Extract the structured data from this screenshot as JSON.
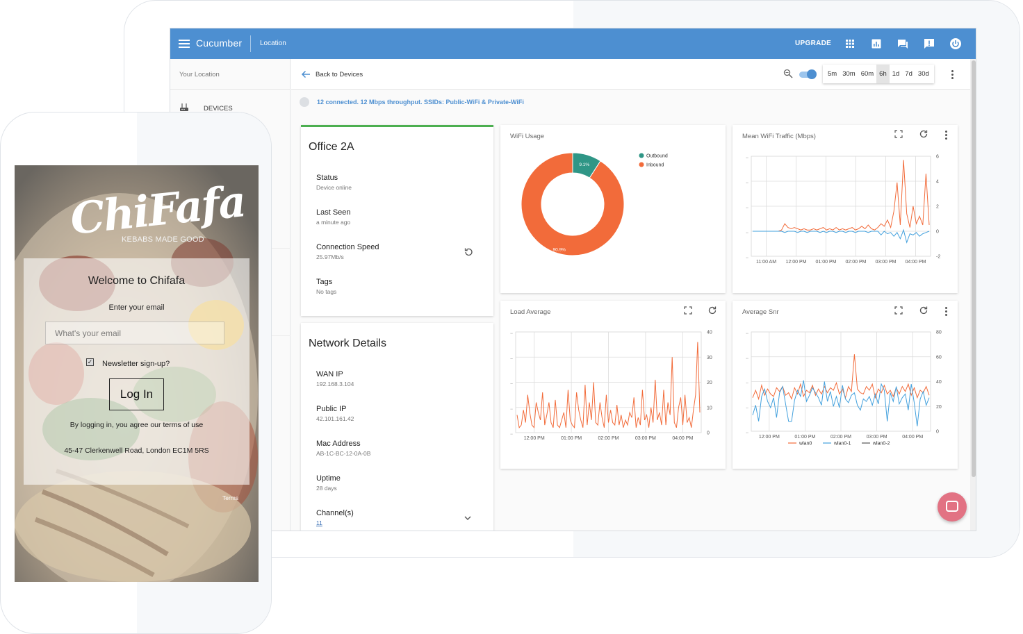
{
  "dashboard": {
    "app_title": "Cucumber",
    "location_label": "Location",
    "upgrade_label": "UPGRADE",
    "topbar_icons": [
      "apps-grid-icon",
      "report-chart-icon",
      "chat-icon",
      "feedback-icon",
      "power-icon"
    ],
    "brand_color": "#4d8fd1",
    "sidebar": {
      "your_location": "Your Location",
      "items": [
        {
          "label": "DEVICES",
          "icon": "router-icon"
        }
      ]
    },
    "subheader": {
      "back_label": "Back to Devices",
      "time_ranges": [
        "5m",
        "30m",
        "60m",
        "6h",
        "1d",
        "7d",
        "30d"
      ],
      "active_range": "6h"
    },
    "status_text": "12 connected. 12 Mbps throughput. SSIDs: Public-WiFi & Private-WiFi",
    "device_card": {
      "title": "Office 2A",
      "accent_color": "#4caf50",
      "fields": [
        {
          "label": "Status",
          "value": "Device online"
        },
        {
          "label": "Last Seen",
          "value": "a minute ago"
        },
        {
          "label": "Connection Speed",
          "value": "25.97Mb/s"
        },
        {
          "label": "Tags",
          "value": "No tags"
        }
      ]
    },
    "network_card": {
      "title": "Network Details",
      "fields": [
        {
          "label": "WAN IP",
          "value": "192.168.3.104"
        },
        {
          "label": "Public IP",
          "value": "42.101.161.42"
        },
        {
          "label": "Mac Address",
          "value": "AB-1C-BC-12-0A-0B"
        },
        {
          "label": "Uptime",
          "value": "28 days"
        },
        {
          "label": "Channel(s)",
          "value": "11"
        }
      ]
    }
  },
  "chart_data": [
    {
      "type": "pie",
      "title": "WiFi Usage",
      "slices": [
        {
          "name": "Outbound",
          "value": 9.1,
          "label": "9.1%",
          "color": "#2f9686"
        },
        {
          "name": "Inbound",
          "value": 90.9,
          "label": "90.9%",
          "color": "#f26b3a"
        }
      ],
      "legend": "top-right"
    },
    {
      "type": "line",
      "title": "Mean WiFi Traffic (Mbps)",
      "x_ticks": [
        "11:00 AM",
        "12:00 PM",
        "01:00 PM",
        "02:00 PM",
        "03:00 PM",
        "04:00 PM"
      ],
      "y_ticks": [
        "6",
        "4",
        "2",
        "0",
        "-2"
      ],
      "ylim": [
        -2,
        6
      ],
      "series": [
        {
          "color": "#f26b3a",
          "values": [
            0,
            0,
            0,
            0,
            0,
            0,
            0,
            0,
            0,
            0.1,
            0.6,
            0.3,
            0.2,
            0.3,
            0.2,
            0.1,
            0.2,
            0.1,
            0.1,
            0.2,
            0.1,
            0.2,
            0.3,
            0.1,
            0.2,
            0.1,
            0.3,
            0.1,
            0.2,
            0.1,
            0.2,
            0.3,
            0.1,
            0.2,
            0.4,
            0.2,
            0.5,
            0.2,
            0.1,
            0.3,
            0.6,
            0.4,
            0.9,
            0.3,
            1.6,
            3.9,
            0.5,
            5.7,
            1.4,
            0.3,
            2.0,
            0.6,
            1.2,
            0.5,
            4.6,
            0.5
          ]
        },
        {
          "color": "#42a0dd",
          "values": [
            0,
            0,
            0,
            0,
            0,
            0,
            0,
            0,
            0,
            0,
            -0.1,
            0,
            0,
            0,
            -0.1,
            0,
            0,
            -0.1,
            0,
            0,
            0,
            -0.1,
            0,
            -0.1,
            0,
            0,
            -0.1,
            0,
            0,
            -0.1,
            0,
            0,
            -0.1,
            0,
            0,
            0,
            -0.1,
            0,
            0,
            0,
            -0.3,
            0,
            -0.2,
            -0.1,
            -0.4,
            -0.1,
            -0.6,
            0.1,
            -0.9,
            -0.2,
            -0.3,
            -0.1,
            -0.4,
            -0.2,
            -0.1,
            0
          ]
        }
      ]
    },
    {
      "type": "line",
      "title": "Load Average",
      "x_ticks": [
        "12:00 PM",
        "01:00 PM",
        "02:00 PM",
        "03:00 PM",
        "04:00 PM"
      ],
      "y_ticks": [
        "40",
        "30",
        "20",
        "10",
        "0"
      ],
      "ylim": [
        0,
        40
      ],
      "series": [
        {
          "color": "#f26b3a",
          "values": [
            7,
            2,
            3,
            9,
            4,
            15,
            8,
            3,
            2,
            12,
            8,
            5,
            16,
            3,
            7,
            12,
            4,
            2,
            13,
            3,
            2,
            5,
            8,
            2,
            17,
            5,
            3,
            2,
            16,
            9,
            5,
            2,
            19,
            3,
            12,
            5,
            20,
            4,
            3,
            12,
            6,
            2,
            15,
            4,
            9,
            4,
            3,
            11,
            3,
            7,
            2,
            5,
            3,
            8,
            6,
            14,
            2,
            6,
            3,
            17,
            5,
            7,
            2,
            10,
            4,
            21,
            5,
            8,
            3,
            17,
            3,
            12,
            7,
            30,
            4,
            2,
            10,
            14,
            3,
            15,
            4,
            6,
            2,
            9,
            15,
            36,
            8
          ]
        }
      ]
    },
    {
      "type": "line",
      "title": "Average Snr",
      "x_ticks": [
        "12:00 PM",
        "01:00 PM",
        "02:00 PM",
        "03:00 PM",
        "04:00 PM"
      ],
      "y_ticks": [
        "80",
        "60",
        "40",
        "20",
        "0"
      ],
      "ylim": [
        0,
        80
      ],
      "series": [
        {
          "name": "wlan0",
          "color": "#f26b3a",
          "values": [
            27,
            33,
            26,
            37,
            29,
            34,
            30,
            28,
            35,
            32,
            36,
            29,
            31,
            26,
            35,
            30,
            38,
            28,
            33,
            31,
            37,
            29,
            34,
            30,
            36,
            31,
            35,
            33,
            39,
            30,
            34,
            27,
            36,
            32,
            62,
            34,
            31,
            30,
            36,
            33,
            38,
            27,
            34,
            31,
            37,
            30,
            33,
            28,
            35,
            30,
            36,
            32,
            38,
            29,
            35,
            27,
            33,
            31,
            36,
            29
          ]
        },
        {
          "name": "wlan0-1",
          "color": "#42a0dd",
          "values": [
            13,
            21,
            8,
            28,
            34,
            24,
            19,
            27,
            11,
            31,
            36,
            22,
            8,
            8,
            25,
            33,
            28,
            41,
            24,
            29,
            35,
            31,
            27,
            21,
            40,
            24,
            32,
            20,
            28,
            19,
            37,
            26,
            23,
            29,
            31,
            21,
            17,
            26,
            24,
            28,
            21,
            30,
            22,
            38,
            33,
            8,
            31,
            24,
            36,
            22,
            27,
            30,
            17,
            38,
            23,
            4,
            26,
            32,
            21,
            27
          ]
        },
        {
          "name": "wlan0-2",
          "color": "#555555",
          "values": []
        }
      ],
      "legend": "bottom"
    }
  ],
  "phone": {
    "brand": "ChiFafa",
    "tagline": "KEBABS MADE GOOD",
    "welcome": "Welcome to Chifafa",
    "enter_email_label": "Enter your email",
    "email_placeholder": "What's your email",
    "newsletter_label": "Newsletter sign-up?",
    "newsletter_checked": true,
    "login_button": "Log In",
    "agree_prefix": "By logging in, you agree our",
    "terms_link": "terms of use",
    "address": "45-47 Clerkenwell Road, London EC1M 5RS",
    "terms_footer": "Terms"
  }
}
